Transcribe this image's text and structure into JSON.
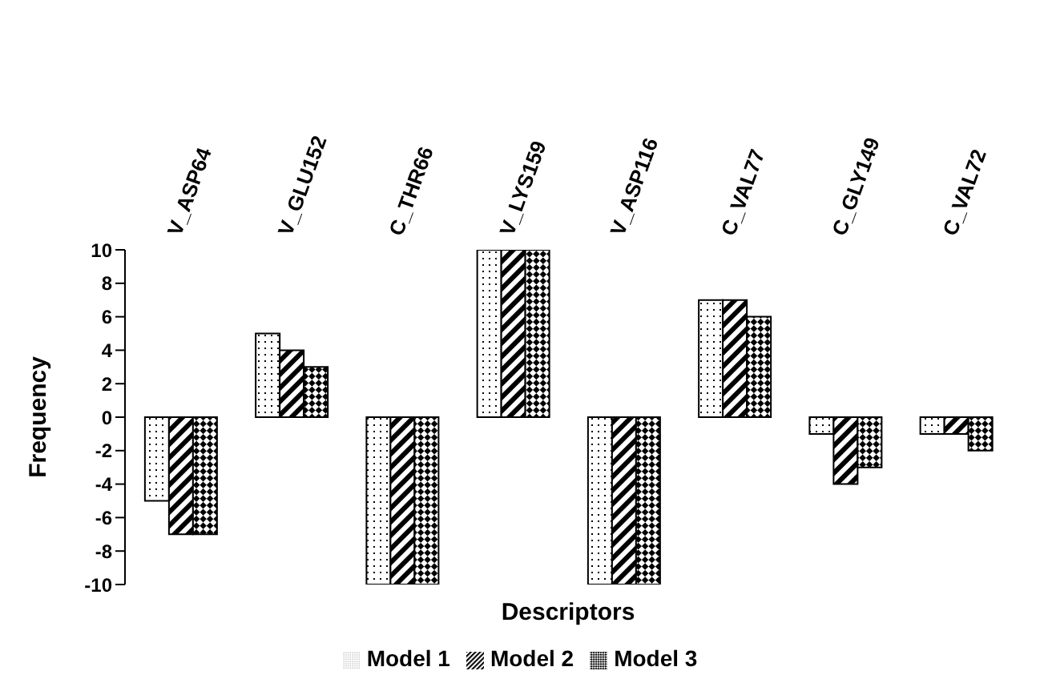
{
  "chart_data": {
    "type": "bar",
    "xlabel": "Descriptors",
    "ylabel": "Frequency",
    "categories": [
      "V_ASP64",
      "V_GLU152",
      "C_THR66",
      "V_LYS159",
      "V_ASP116",
      "C_VAL77",
      "C_GLY149",
      "C_VAL72"
    ],
    "series": [
      {
        "name": "Model 1",
        "color": "#000000",
        "values": [
          -5,
          5,
          -10,
          10,
          -10,
          7,
          -1,
          -1
        ]
      },
      {
        "name": "Model 2",
        "color": "#000000",
        "values": [
          -7,
          4,
          -10,
          10,
          -10,
          7,
          -4,
          -1
        ]
      },
      {
        "name": "Model 3",
        "color": "#000000",
        "values": [
          -7,
          3,
          -10,
          10,
          -10,
          6,
          -3,
          -2
        ]
      }
    ],
    "ylim": [
      -10,
      10
    ],
    "yticks": [
      -10,
      -8,
      -6,
      -4,
      -2,
      0,
      2,
      4,
      6,
      8,
      10
    ],
    "grid": false,
    "legend": "bottom"
  }
}
